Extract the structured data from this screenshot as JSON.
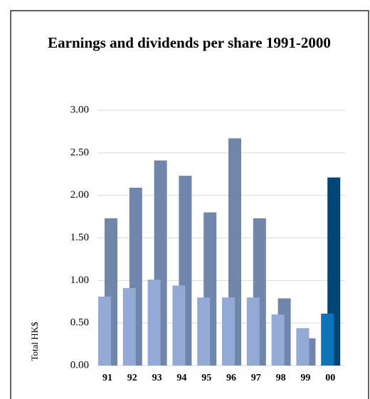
{
  "chart_data": {
    "type": "bar",
    "title": "Earnings and dividends per share 1991-2000",
    "y_label": "Total HK$",
    "categories": [
      "91",
      "92",
      "93",
      "94",
      "95",
      "96",
      "97",
      "98",
      "99",
      "00"
    ],
    "series": [
      {
        "colors": [
          "#94aad6",
          "#94aad6",
          "#94aad6",
          "#94aad6",
          "#94aad6",
          "#94aad6",
          "#94aad6",
          "#94aad6",
          "#94aad6",
          "#0d73ba"
        ],
        "values": [
          0.81,
          0.91,
          1.01,
          0.94,
          0.8,
          0.8,
          0.8,
          0.6,
          0.44,
          0.61
        ]
      },
      {
        "colors": [
          "#7086ab",
          "#7086ab",
          "#7086ab",
          "#7086ab",
          "#7086ab",
          "#7086ab",
          "#7086ab",
          "#7086ab",
          "#7086ab",
          "#004676"
        ],
        "values": [
          1.73,
          2.09,
          2.41,
          2.23,
          1.8,
          2.67,
          1.73,
          0.79,
          0.32,
          2.21
        ]
      }
    ],
    "ylim": [
      0,
      3
    ],
    "yticks": [
      {
        "value": 0,
        "label": "0.00"
      },
      {
        "value": 0.5,
        "label": "0.50"
      },
      {
        "value": 1,
        "label": "1.00"
      },
      {
        "value": 1.5,
        "label": "1.50"
      },
      {
        "value": 2,
        "label": "2.00"
      },
      {
        "value": 2.5,
        "label": "2.50"
      },
      {
        "value": 3,
        "label": "3.00"
      }
    ],
    "grid": true
  }
}
